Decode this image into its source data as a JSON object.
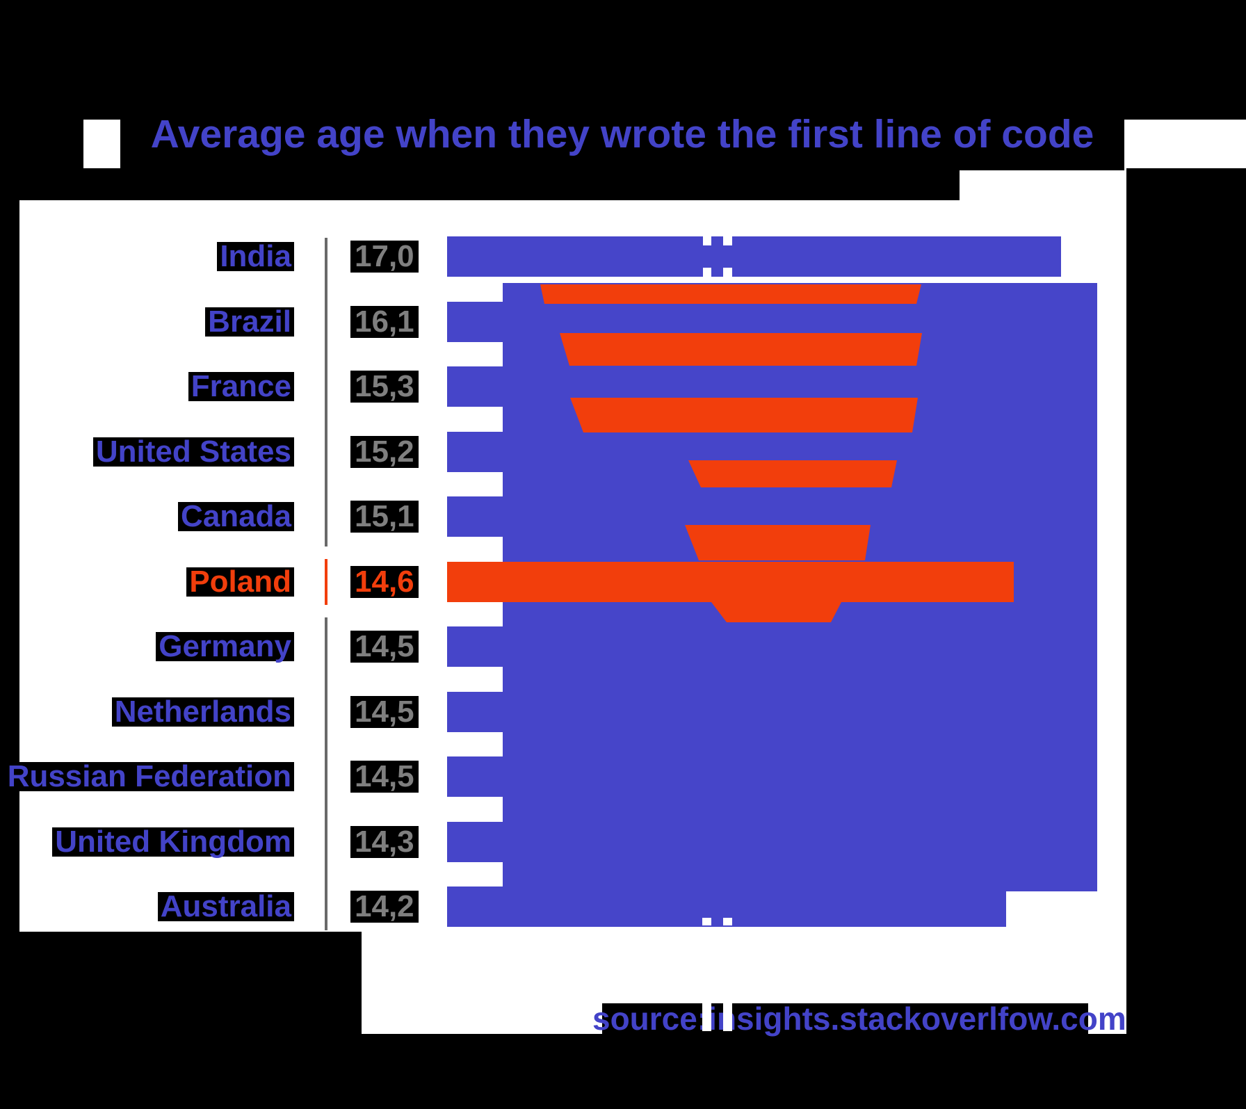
{
  "title": "Average age when they wrote the first line of code",
  "source": "source:insights.stackoverlfow.com",
  "colors": {
    "blue": "#4645C9",
    "orange": "#F23E0C",
    "label_blue": "#4343C8",
    "gray_text": "#7F7F7F",
    "axis_gray": "#6A6A6A",
    "canvas_white": "#FFFFFF",
    "textbox_black": "#000000"
  },
  "chart_data": {
    "type": "bar",
    "orientation": "horizontal",
    "title": "Average age when they wrote the first line of code",
    "source": "source:insights.stackoverlfow.com",
    "categories": [
      "India",
      "Brazil",
      "France",
      "United States",
      "Canada",
      "Poland",
      "Germany",
      "Netherlands",
      "Russian Federation",
      "United Kingdom",
      "Australia"
    ],
    "values": [
      17.0,
      16.1,
      15.3,
      15.2,
      15.1,
      14.6,
      14.5,
      14.5,
      14.5,
      14.3,
      14.2
    ],
    "value_labels": [
      "17,0",
      "16,1",
      "15,3",
      "15,2",
      "15,1",
      "14,6",
      "14,5",
      "14,5",
      "14,5",
      "14,3",
      "14,2"
    ],
    "highlight_category": "Poland",
    "highlight_index": 5,
    "bar_color": "#4645C9",
    "highlight_color": "#F23E0C",
    "xlabel": "",
    "ylabel": "",
    "grid": false,
    "legend": false,
    "annotation": "orange highlighter funnel converging on Poland row"
  }
}
